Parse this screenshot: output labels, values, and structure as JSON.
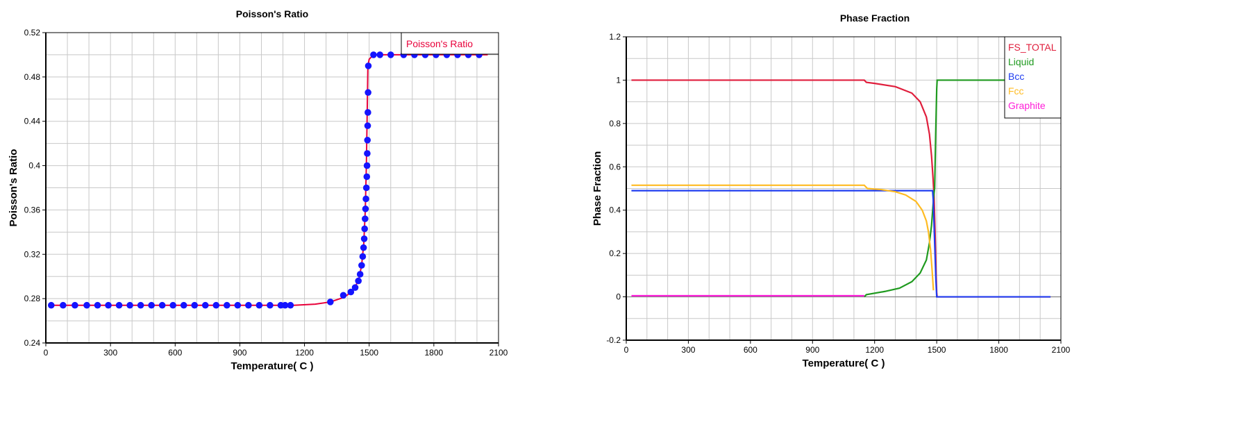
{
  "chart_data": [
    {
      "type": "line",
      "title": "Poisson's Ratio",
      "xlabel": "Temperature( C )",
      "ylabel": "Poisson's Ratio",
      "xlim": [
        0,
        2100
      ],
      "ylim": [
        0.24,
        0.52
      ],
      "xticks": [
        "0",
        "300",
        "600",
        "900",
        "1200",
        "1500",
        "1800",
        "2100"
      ],
      "yticks": [
        "0.24",
        "0.28",
        "0.32",
        "0.36",
        "0.4",
        "0.44",
        "0.48",
        "0.52"
      ],
      "grid": true,
      "legend_position": "top-right",
      "legend": [
        "Poisson's Ratio"
      ],
      "series": [
        {
          "name": "Poisson's Ratio",
          "color": "#e8003a",
          "marker_color": "#1414ff",
          "line": [
            [
              25,
              0.274
            ],
            [
              1150,
              0.274
            ],
            [
              1250,
              0.275
            ],
            [
              1320,
              0.277
            ],
            [
              1380,
              0.281
            ],
            [
              1420,
              0.286
            ],
            [
              1450,
              0.296
            ],
            [
              1465,
              0.31
            ],
            [
              1475,
              0.33
            ],
            [
              1482,
              0.36
            ],
            [
              1487,
              0.4
            ],
            [
              1491,
              0.45
            ],
            [
              1494,
              0.49
            ],
            [
              1500,
              0.496
            ],
            [
              1520,
              0.5
            ],
            [
              2050,
              0.5
            ]
          ],
          "markers": [
            [
              25,
              0.274
            ],
            [
              80,
              0.274
            ],
            [
              135,
              0.274
            ],
            [
              190,
              0.274
            ],
            [
              240,
              0.274
            ],
            [
              290,
              0.274
            ],
            [
              340,
              0.274
            ],
            [
              390,
              0.274
            ],
            [
              440,
              0.274
            ],
            [
              490,
              0.274
            ],
            [
              540,
              0.274
            ],
            [
              590,
              0.274
            ],
            [
              640,
              0.274
            ],
            [
              690,
              0.274
            ],
            [
              740,
              0.274
            ],
            [
              790,
              0.274
            ],
            [
              840,
              0.274
            ],
            [
              890,
              0.274
            ],
            [
              940,
              0.274
            ],
            [
              990,
              0.274
            ],
            [
              1040,
              0.274
            ],
            [
              1090,
              0.274
            ],
            [
              1110,
              0.274
            ],
            [
              1135,
              0.274
            ],
            [
              1320,
              0.277
            ],
            [
              1380,
              0.283
            ],
            [
              1415,
              0.286
            ],
            [
              1435,
              0.29
            ],
            [
              1450,
              0.296
            ],
            [
              1458,
              0.302
            ],
            [
              1465,
              0.31
            ],
            [
              1470,
              0.318
            ],
            [
              1474,
              0.326
            ],
            [
              1477,
              0.334
            ],
            [
              1479,
              0.343
            ],
            [
              1481,
              0.352
            ],
            [
              1483,
              0.361
            ],
            [
              1485,
              0.37
            ],
            [
              1487,
              0.38
            ],
            [
              1489,
              0.39
            ],
            [
              1490,
              0.4
            ],
            [
              1491,
              0.411
            ],
            [
              1492,
              0.423
            ],
            [
              1493,
              0.436
            ],
            [
              1494,
              0.448
            ],
            [
              1495,
              0.466
            ],
            [
              1496,
              0.49
            ],
            [
              1520,
              0.5
            ],
            [
              1550,
              0.5
            ],
            [
              1600,
              0.5
            ],
            [
              1660,
              0.5
            ],
            [
              1710,
              0.5
            ],
            [
              1760,
              0.5
            ],
            [
              1810,
              0.5
            ],
            [
              1860,
              0.5
            ],
            [
              1910,
              0.5
            ],
            [
              1960,
              0.5
            ],
            [
              2010,
              0.5
            ]
          ]
        }
      ]
    },
    {
      "type": "line",
      "title": "Phase Fraction",
      "xlabel": "Temperature( C )",
      "ylabel": "Phase Fraction",
      "xlim": [
        0,
        2100
      ],
      "ylim": [
        -0.2,
        1.2
      ],
      "xticks": [
        "0",
        "300",
        "600",
        "900",
        "1200",
        "1500",
        "1800",
        "2100"
      ],
      "yticks": [
        "-0.2",
        "0",
        "0.2",
        "0.4",
        "0.6",
        "0.8",
        "1",
        "1.2"
      ],
      "grid": true,
      "legend_position": "top-right",
      "series": [
        {
          "name": "FS_TOTAL",
          "color": "#e01e3c",
          "points": [
            [
              25,
              1.0
            ],
            [
              1150,
              1.0
            ],
            [
              1160,
              0.99
            ],
            [
              1200,
              0.985
            ],
            [
              1300,
              0.97
            ],
            [
              1380,
              0.94
            ],
            [
              1420,
              0.9
            ],
            [
              1450,
              0.83
            ],
            [
              1465,
              0.75
            ],
            [
              1475,
              0.65
            ],
            [
              1482,
              0.55
            ],
            [
              1485,
              0.5
            ],
            [
              1487,
              0.47
            ],
            [
              1492,
              0.3
            ],
            [
              1497,
              0.1
            ],
            [
              1500,
              0.02
            ],
            [
              1502,
              0.0
            ],
            [
              2050,
              0.0
            ]
          ]
        },
        {
          "name": "Liquid",
          "color": "#1f9a1f",
          "points": [
            [
              1150,
              0.0
            ],
            [
              1160,
              0.01
            ],
            [
              1250,
              0.025
            ],
            [
              1320,
              0.04
            ],
            [
              1380,
              0.07
            ],
            [
              1420,
              0.11
            ],
            [
              1450,
              0.17
            ],
            [
              1465,
              0.25
            ],
            [
              1475,
              0.33
            ],
            [
              1482,
              0.42
            ],
            [
              1486,
              0.47
            ],
            [
              1490,
              0.5
            ],
            [
              1495,
              0.75
            ],
            [
              1500,
              0.96
            ],
            [
              1502,
              1.0
            ],
            [
              2050,
              1.0
            ]
          ]
        },
        {
          "name": "Bcc",
          "color": "#1e3cf0",
          "points": [
            [
              25,
              0.49
            ],
            [
              1480,
              0.49
            ],
            [
              1483,
              0.45
            ],
            [
              1490,
              0.25
            ],
            [
              1496,
              0.08
            ],
            [
              1500,
              0.0
            ],
            [
              2050,
              0.0
            ]
          ]
        },
        {
          "name": "Fcc",
          "color": "#ffbb22",
          "points": [
            [
              25,
              0.515
            ],
            [
              1150,
              0.515
            ],
            [
              1165,
              0.5
            ],
            [
              1230,
              0.495
            ],
            [
              1300,
              0.485
            ],
            [
              1350,
              0.47
            ],
            [
              1400,
              0.44
            ],
            [
              1430,
              0.4
            ],
            [
              1450,
              0.35
            ],
            [
              1460,
              0.3
            ],
            [
              1470,
              0.22
            ],
            [
              1478,
              0.12
            ],
            [
              1484,
              0.03
            ]
          ]
        },
        {
          "name": "Graphite",
          "color": "#ff1ed8",
          "points": [
            [
              25,
              0.005
            ],
            [
              1150,
              0.005
            ]
          ]
        }
      ]
    }
  ]
}
